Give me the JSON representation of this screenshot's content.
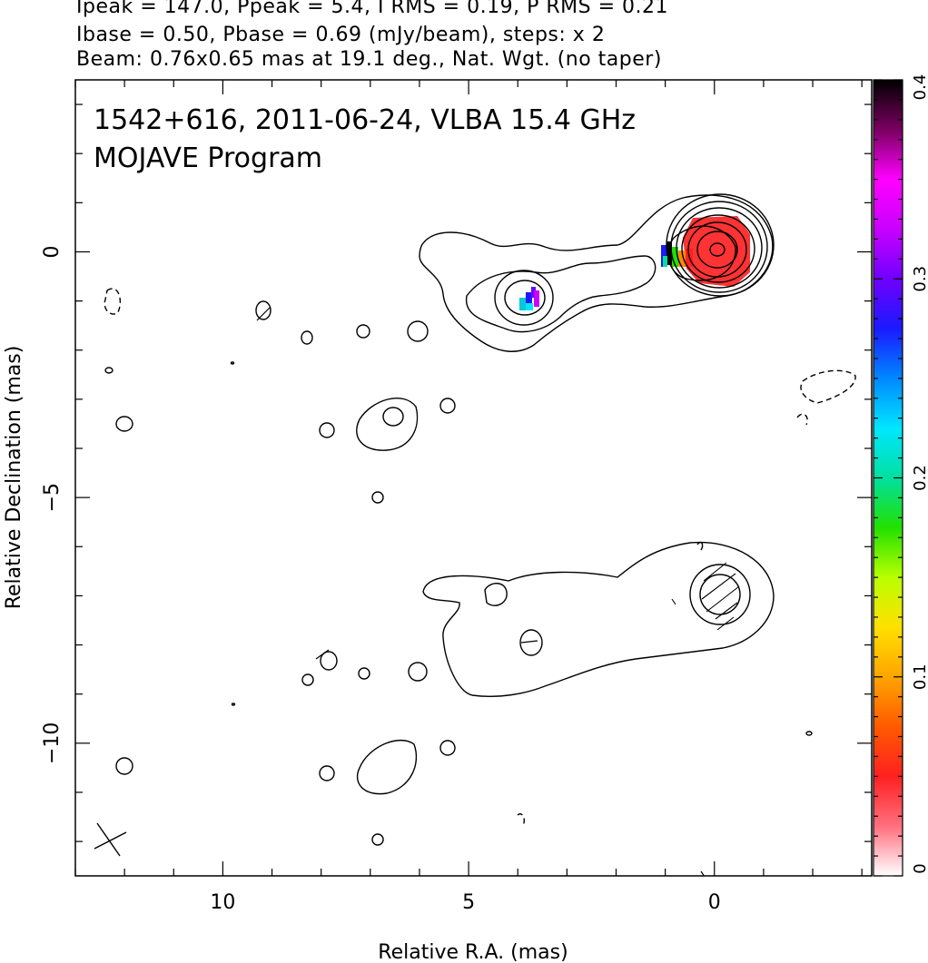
{
  "header": {
    "line1": "Ipeak = 147.0, Ppeak = 5.4, I RMS = 0.19, P RMS = 0.21",
    "line2": "Ibase = 0.50, Pbase = 0.69 (mJy/beam), steps: x 2",
    "line3": "Beam: 0.76x0.65 mas at 19.1 deg., Nat. Wgt. (no taper)"
  },
  "chart_data": {
    "type": "contour",
    "title": "1542+616, 2011-06-24, VLBA 15.4 GHz",
    "subtitle": "MOJAVE Program",
    "xlabel": "Relative R.A. (mas)",
    "ylabel": "Relative Declination (mas)",
    "xlim": [
      13.0,
      -3.2
    ],
    "ylim": [
      -12.7,
      3.5
    ],
    "x_ticks": [
      {
        "value": 10,
        "label": "10"
      },
      {
        "value": 5,
        "label": "5"
      },
      {
        "value": 0,
        "label": "0"
      }
    ],
    "y_ticks": [
      {
        "value": 0,
        "label": "0"
      },
      {
        "value": -5,
        "label": "−5"
      },
      {
        "value": -10,
        "label": "−10"
      }
    ],
    "colorbar": {
      "range": [
        0,
        0.4
      ],
      "ticks": [
        {
          "value": 0,
          "label": "0"
        },
        {
          "value": 0.1,
          "label": "0.1"
        },
        {
          "value": 0.2,
          "label": "0.2"
        },
        {
          "value": 0.3,
          "label": "0.3"
        },
        {
          "value": 0.4,
          "label": "0.4"
        }
      ],
      "colors": [
        "#ffffff",
        "#ff6f7f",
        "#ff2020",
        "#ff5a00",
        "#ffa500",
        "#ffe000",
        "#b8ff00",
        "#22e000",
        "#00e0a0",
        "#00e6ff",
        "#0088ff",
        "#1a1aff",
        "#7000ff",
        "#c800ff",
        "#ff00ff",
        "#7a0060",
        "#000000"
      ]
    },
    "core_color": "#ff3333",
    "components": [
      {
        "name": "core",
        "x": 0.0,
        "y": 0.0
      },
      {
        "name": "jet-knot",
        "x": 3.8,
        "y": -1.05
      },
      {
        "name": "beam",
        "x": 12.5,
        "y": -12.0
      }
    ]
  }
}
